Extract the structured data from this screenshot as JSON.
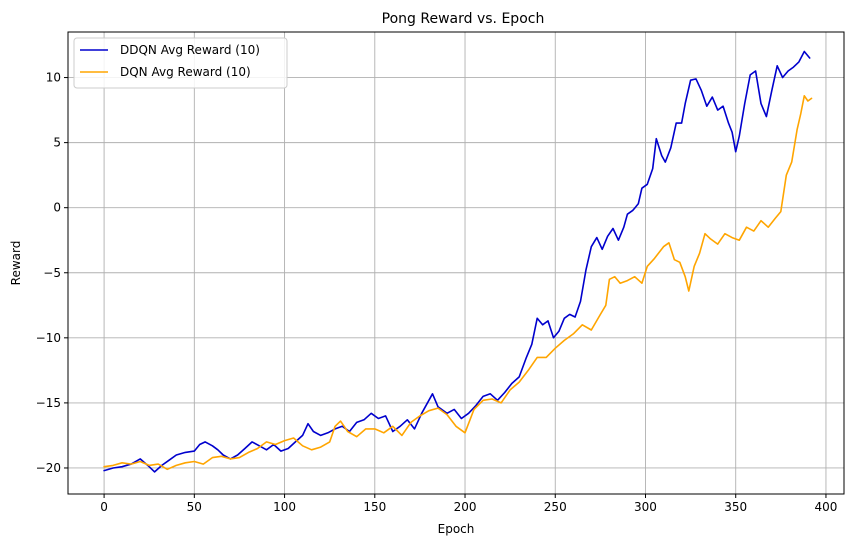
{
  "chart_data": {
    "type": "line",
    "title": "Pong Reward vs. Epoch",
    "xlabel": "Epoch",
    "ylabel": "Reward",
    "xlim": [
      -20,
      410
    ],
    "ylim": [
      -22,
      13.5
    ],
    "xticks": [
      0,
      50,
      100,
      150,
      200,
      250,
      300,
      350,
      400
    ],
    "yticks": [
      -20,
      -15,
      -10,
      -5,
      0,
      5,
      10
    ],
    "grid": true,
    "legend_position": "top-left",
    "series": [
      {
        "name": "DDQN Avg Reward (10)",
        "color": "#0000cd",
        "points": [
          [
            0,
            -20.2
          ],
          [
            5,
            -20.0
          ],
          [
            10,
            -19.9
          ],
          [
            15,
            -19.7
          ],
          [
            20,
            -19.3
          ],
          [
            25,
            -19.9
          ],
          [
            28,
            -20.3
          ],
          [
            32,
            -19.8
          ],
          [
            36,
            -19.4
          ],
          [
            40,
            -19.0
          ],
          [
            45,
            -18.8
          ],
          [
            50,
            -18.7
          ],
          [
            53,
            -18.2
          ],
          [
            56,
            -18.0
          ],
          [
            60,
            -18.3
          ],
          [
            63,
            -18.6
          ],
          [
            66,
            -19.0
          ],
          [
            70,
            -19.3
          ],
          [
            74,
            -19.0
          ],
          [
            78,
            -18.5
          ],
          [
            82,
            -18.0
          ],
          [
            86,
            -18.3
          ],
          [
            90,
            -18.6
          ],
          [
            94,
            -18.2
          ],
          [
            98,
            -18.7
          ],
          [
            102,
            -18.5
          ],
          [
            106,
            -18.0
          ],
          [
            110,
            -17.5
          ],
          [
            113,
            -16.6
          ],
          [
            116,
            -17.2
          ],
          [
            120,
            -17.5
          ],
          [
            124,
            -17.3
          ],
          [
            128,
            -17.0
          ],
          [
            132,
            -16.8
          ],
          [
            136,
            -17.2
          ],
          [
            140,
            -16.5
          ],
          [
            144,
            -16.3
          ],
          [
            148,
            -15.8
          ],
          [
            152,
            -16.2
          ],
          [
            156,
            -16.0
          ],
          [
            160,
            -17.2
          ],
          [
            164,
            -16.8
          ],
          [
            168,
            -16.3
          ],
          [
            172,
            -17.0
          ],
          [
            176,
            -15.8
          ],
          [
            180,
            -14.8
          ],
          [
            182,
            -14.3
          ],
          [
            185,
            -15.3
          ],
          [
            190,
            -15.8
          ],
          [
            194,
            -15.5
          ],
          [
            198,
            -16.2
          ],
          [
            202,
            -15.8
          ],
          [
            206,
            -15.2
          ],
          [
            210,
            -14.5
          ],
          [
            214,
            -14.3
          ],
          [
            218,
            -14.8
          ],
          [
            222,
            -14.2
          ],
          [
            226,
            -13.5
          ],
          [
            230,
            -13.0
          ],
          [
            234,
            -11.5
          ],
          [
            237,
            -10.5
          ],
          [
            240,
            -8.5
          ],
          [
            243,
            -9.0
          ],
          [
            246,
            -8.7
          ],
          [
            249,
            -10.0
          ],
          [
            252,
            -9.5
          ],
          [
            255,
            -8.5
          ],
          [
            258,
            -8.2
          ],
          [
            261,
            -8.4
          ],
          [
            264,
            -7.2
          ],
          [
            267,
            -4.8
          ],
          [
            270,
            -3.0
          ],
          [
            273,
            -2.3
          ],
          [
            276,
            -3.2
          ],
          [
            279,
            -2.2
          ],
          [
            282,
            -1.6
          ],
          [
            285,
            -2.5
          ],
          [
            288,
            -1.5
          ],
          [
            290,
            -0.5
          ],
          [
            293,
            -0.2
          ],
          [
            296,
            0.3
          ],
          [
            298,
            1.5
          ],
          [
            301,
            1.8
          ],
          [
            304,
            3.0
          ],
          [
            306,
            5.3
          ],
          [
            309,
            4.0
          ],
          [
            311,
            3.5
          ],
          [
            314,
            4.6
          ],
          [
            317,
            6.5
          ],
          [
            320,
            6.5
          ],
          [
            322,
            8.0
          ],
          [
            325,
            9.8
          ],
          [
            328,
            9.9
          ],
          [
            331,
            9.0
          ],
          [
            334,
            7.8
          ],
          [
            337,
            8.5
          ],
          [
            340,
            7.5
          ],
          [
            343,
            7.8
          ],
          [
            346,
            6.5
          ],
          [
            348,
            5.8
          ],
          [
            350,
            4.3
          ],
          [
            352,
            5.5
          ],
          [
            355,
            8.0
          ],
          [
            358,
            10.2
          ],
          [
            361,
            10.5
          ],
          [
            364,
            8.0
          ],
          [
            367,
            7.0
          ],
          [
            370,
            9.0
          ],
          [
            373,
            10.9
          ],
          [
            376,
            10.0
          ],
          [
            379,
            10.5
          ],
          [
            382,
            10.8
          ],
          [
            385,
            11.2
          ],
          [
            388,
            12.0
          ],
          [
            391,
            11.5
          ]
        ]
      },
      {
        "name": "DQN Avg Reward (10)",
        "color": "#ffa500",
        "points": [
          [
            0,
            -19.9
          ],
          [
            5,
            -19.8
          ],
          [
            10,
            -19.6
          ],
          [
            15,
            -19.7
          ],
          [
            20,
            -19.5
          ],
          [
            25,
            -19.8
          ],
          [
            30,
            -19.7
          ],
          [
            35,
            -20.1
          ],
          [
            40,
            -19.8
          ],
          [
            45,
            -19.6
          ],
          [
            50,
            -19.5
          ],
          [
            55,
            -19.7
          ],
          [
            60,
            -19.2
          ],
          [
            65,
            -19.1
          ],
          [
            70,
            -19.3
          ],
          [
            75,
            -19.2
          ],
          [
            80,
            -18.8
          ],
          [
            85,
            -18.5
          ],
          [
            90,
            -18.0
          ],
          [
            95,
            -18.2
          ],
          [
            100,
            -17.9
          ],
          [
            105,
            -17.7
          ],
          [
            110,
            -18.3
          ],
          [
            115,
            -18.6
          ],
          [
            120,
            -18.4
          ],
          [
            125,
            -18.0
          ],
          [
            128,
            -16.8
          ],
          [
            131,
            -16.4
          ],
          [
            135,
            -17.2
          ],
          [
            140,
            -17.6
          ],
          [
            145,
            -17.0
          ],
          [
            150,
            -17.0
          ],
          [
            155,
            -17.3
          ],
          [
            160,
            -16.8
          ],
          [
            165,
            -17.5
          ],
          [
            170,
            -16.5
          ],
          [
            175,
            -16.0
          ],
          [
            180,
            -15.6
          ],
          [
            185,
            -15.4
          ],
          [
            190,
            -15.9
          ],
          [
            195,
            -16.8
          ],
          [
            200,
            -17.3
          ],
          [
            205,
            -15.5
          ],
          [
            210,
            -14.8
          ],
          [
            215,
            -14.7
          ],
          [
            220,
            -15.0
          ],
          [
            225,
            -14.0
          ],
          [
            230,
            -13.4
          ],
          [
            235,
            -12.5
          ],
          [
            240,
            -11.5
          ],
          [
            245,
            -11.5
          ],
          [
            250,
            -10.8
          ],
          [
            255,
            -10.2
          ],
          [
            260,
            -9.7
          ],
          [
            265,
            -9.0
          ],
          [
            270,
            -9.4
          ],
          [
            275,
            -8.2
          ],
          [
            278,
            -7.5
          ],
          [
            280,
            -5.5
          ],
          [
            283,
            -5.3
          ],
          [
            286,
            -5.8
          ],
          [
            290,
            -5.6
          ],
          [
            294,
            -5.3
          ],
          [
            298,
            -5.8
          ],
          [
            301,
            -4.5
          ],
          [
            305,
            -3.9
          ],
          [
            310,
            -3.0
          ],
          [
            313,
            -2.7
          ],
          [
            316,
            -4.0
          ],
          [
            319,
            -4.2
          ],
          [
            322,
            -5.3
          ],
          [
            324,
            -6.4
          ],
          [
            327,
            -4.5
          ],
          [
            330,
            -3.5
          ],
          [
            333,
            -2.0
          ],
          [
            336,
            -2.4
          ],
          [
            340,
            -2.8
          ],
          [
            344,
            -2.0
          ],
          [
            348,
            -2.3
          ],
          [
            352,
            -2.5
          ],
          [
            356,
            -1.5
          ],
          [
            360,
            -1.8
          ],
          [
            364,
            -1.0
          ],
          [
            368,
            -1.5
          ],
          [
            372,
            -0.8
          ],
          [
            375,
            -0.3
          ],
          [
            378,
            2.5
          ],
          [
            381,
            3.5
          ],
          [
            384,
            6.0
          ],
          [
            386,
            7.2
          ],
          [
            388,
            8.6
          ],
          [
            390,
            8.2
          ],
          [
            392,
            8.4
          ]
        ]
      }
    ]
  }
}
